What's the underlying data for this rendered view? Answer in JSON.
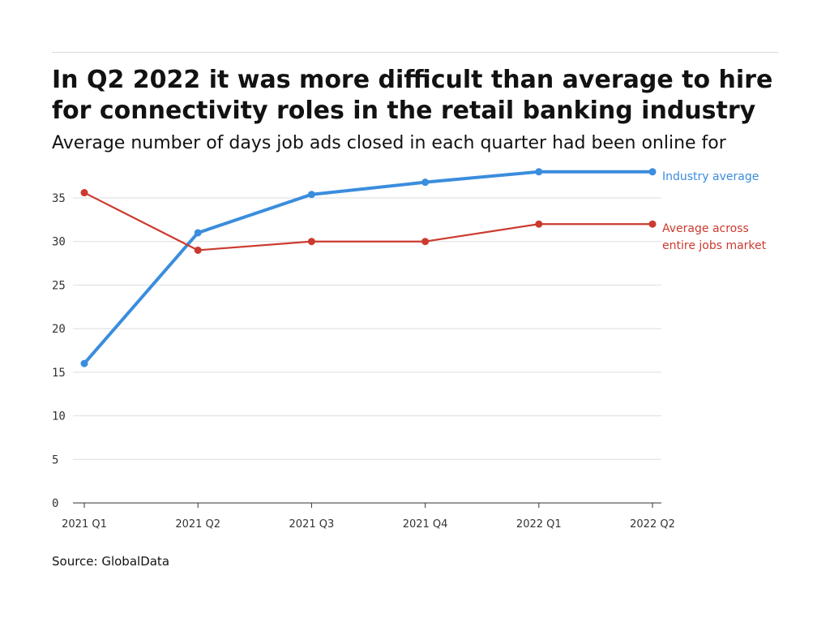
{
  "title": "In Q2 2022 it was more difficult than average to hire for connectivity roles in the retail banking industry",
  "subtitle": "Average number of days job ads closed in each quarter had been online for",
  "source": "Source: GlobalData",
  "chart_data": {
    "type": "line",
    "categories": [
      "2021 Q1",
      "2021 Q2",
      "2021 Q3",
      "2021 Q4",
      "2022 Q1",
      "2022 Q2"
    ],
    "series": [
      {
        "name": "Industry average",
        "label_lines": [
          "Industry average"
        ],
        "color": "#3b8ddd",
        "values": [
          16,
          31,
          35.4,
          36.8,
          38,
          38
        ]
      },
      {
        "name": "Average across entire jobs market",
        "label_lines": [
          "Average across",
          "entire jobs market"
        ],
        "color": "#cc3a2f",
        "values": [
          35.6,
          29,
          30,
          30,
          32,
          32
        ]
      }
    ],
    "yticks": [
      0,
      5,
      10,
      15,
      20,
      25,
      30,
      35
    ],
    "ylim": [
      0,
      38
    ],
    "grid": true,
    "legend": "end-of-line labels"
  }
}
